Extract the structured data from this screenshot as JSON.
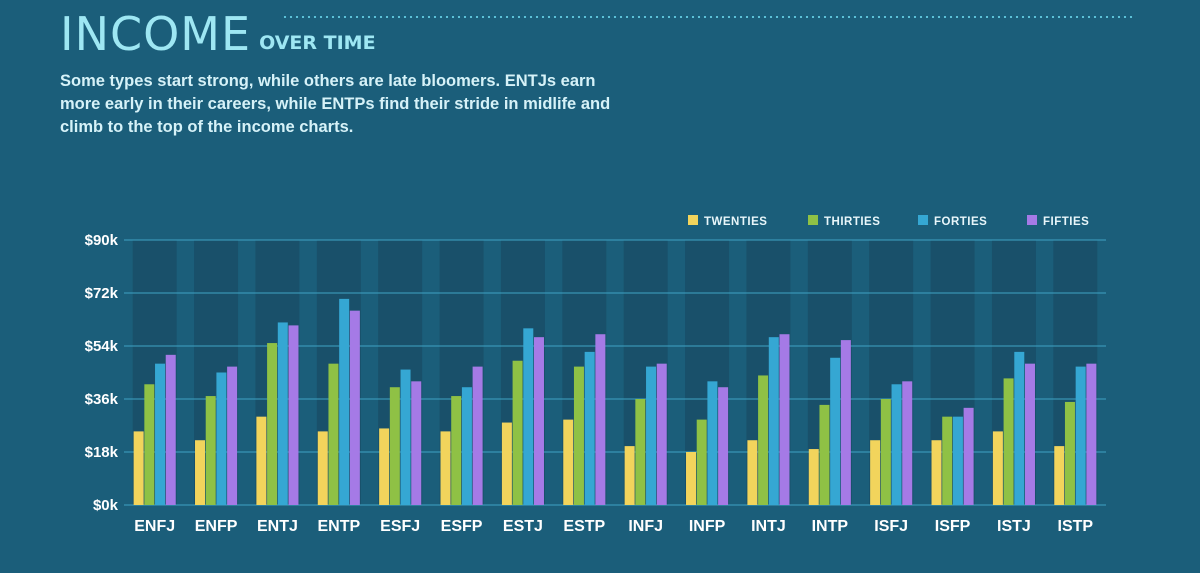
{
  "header": {
    "title": "INCOME",
    "title_suffix": "OVER TIME",
    "subtitle": "Some types start strong, while others are late bloomers. ENTJs earn more early in their careers, while ENTPs find their stride in midlife and climb to the top of the income charts."
  },
  "colors": {
    "background": "#1b5e7a",
    "column_band": "#19506a",
    "gridline": "#3fa3c4",
    "twenties": "#f2d45c",
    "thirties": "#8fc145",
    "forties": "#35a7d3",
    "fifties": "#a57ae6"
  },
  "chart_data": {
    "type": "bar",
    "categories": [
      "ENFJ",
      "ENFP",
      "ENTJ",
      "ENTP",
      "ESFJ",
      "ESFP",
      "ESTJ",
      "ESTP",
      "INFJ",
      "INFP",
      "INTJ",
      "INTP",
      "ISFJ",
      "ISFP",
      "ISTJ",
      "ISTP"
    ],
    "series": [
      {
        "name": "TWENTIES",
        "values": [
          25,
          22,
          30,
          25,
          26,
          25,
          28,
          29,
          20,
          18,
          22,
          19,
          22,
          22,
          25,
          20
        ]
      },
      {
        "name": "THIRTIES",
        "values": [
          41,
          37,
          55,
          48,
          40,
          37,
          49,
          47,
          36,
          29,
          44,
          34,
          36,
          30,
          43,
          35
        ]
      },
      {
        "name": "FORTIES",
        "values": [
          48,
          45,
          62,
          70,
          46,
          40,
          60,
          52,
          47,
          42,
          57,
          50,
          41,
          30,
          52,
          47
        ]
      },
      {
        "name": "FIFTIES",
        "values": [
          51,
          47,
          61,
          66,
          42,
          47,
          57,
          58,
          48,
          40,
          58,
          56,
          42,
          33,
          48,
          48
        ]
      }
    ],
    "title": "",
    "xlabel": "",
    "ylabel": "",
    "ylim": [
      0,
      90
    ],
    "yticks": [
      0,
      18,
      36,
      54,
      72,
      90
    ],
    "ytick_labels": [
      "$0k",
      "$18k",
      "$36k",
      "$54k",
      "$72k",
      "$90k"
    ],
    "grid": true,
    "legend_position": "top-right"
  }
}
